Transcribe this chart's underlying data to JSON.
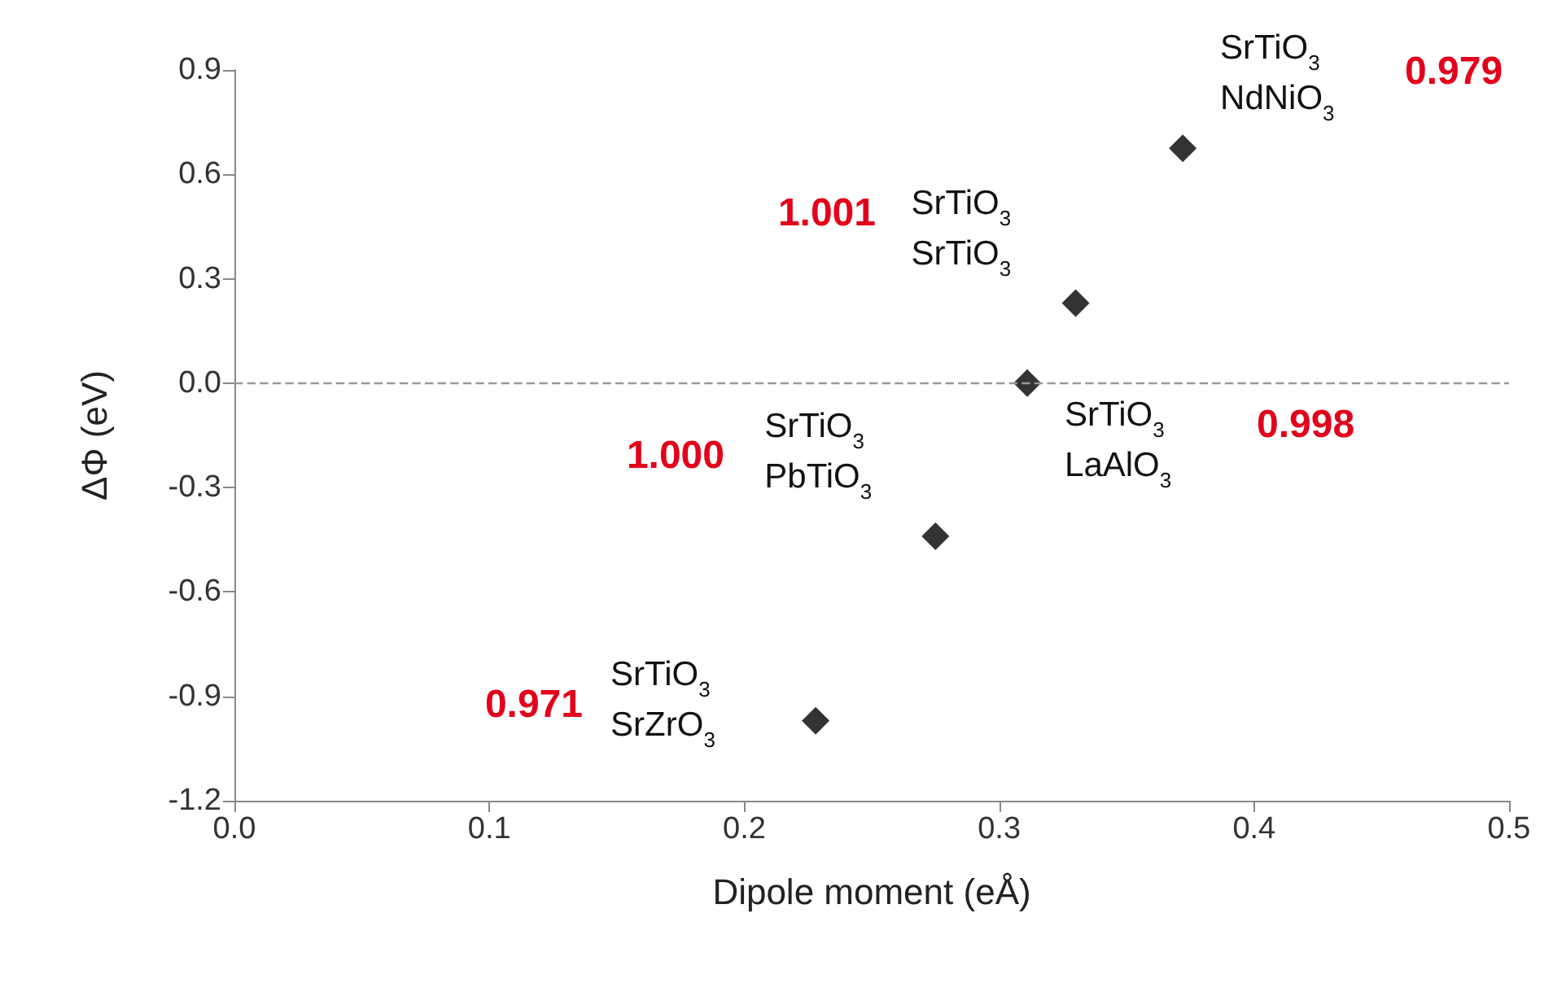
{
  "chart_data": {
    "type": "scatter",
    "xlabel": "Dipole moment (eÅ)",
    "ylabel": "ΔΦ (eV)",
    "x": [
      0.372,
      0.33,
      0.311,
      0.275,
      0.228
    ],
    "series": [
      {
        "color": "#000000",
        "values": [
          0.675,
          0.23,
          0.0,
          -0.44,
          -0.97
        ]
      }
    ],
    "marker": "diamond",
    "grid": false,
    "xlim": [
      0,
      0.5
    ],
    "xticks": [
      {
        "value": 0,
        "label": "0.0"
      },
      0.1,
      0.2,
      0.3,
      0.4,
      0.5
    ],
    "ylim": [
      -1.2,
      0.9
    ],
    "yticks": [
      -1.2,
      -0.9,
      -0.6,
      -0.3,
      {
        "value": 0,
        "label": "0.0"
      },
      0.3,
      0.6,
      0.9
    ],
    "ref_lines": [
      {
        "axis": "y",
        "value": 0,
        "color": "#999999",
        "line_style": "dashed"
      }
    ],
    "annotations": [
      {
        "text": "SrTiO$_{3}$\nNdNiO$_{3}$",
        "x": 0.372,
        "y": 0.675
      },
      "0.979",
      {
        "text": "SrTiO$_{3}$\nSrTiO$_{3}$",
        "x": 0.33,
        "y": 0.23
      },
      "1.001",
      {
        "text": "SrTiO$_{3}$\nLaAlO$_{3}$",
        "x": 0.311,
        "y": 0.0
      },
      "0.998",
      {
        "text": "SrTiO$_{3}$\nPbTiO$_{3}$",
        "x": 0.275,
        "y": -0.44
      },
      "1.000",
      {
        "text": "SrTiO$_{3}$\nSrZrO$_{3}$",
        "x": 0.228,
        "y": -0.97
      },
      "0.971"
    ]
  }
}
